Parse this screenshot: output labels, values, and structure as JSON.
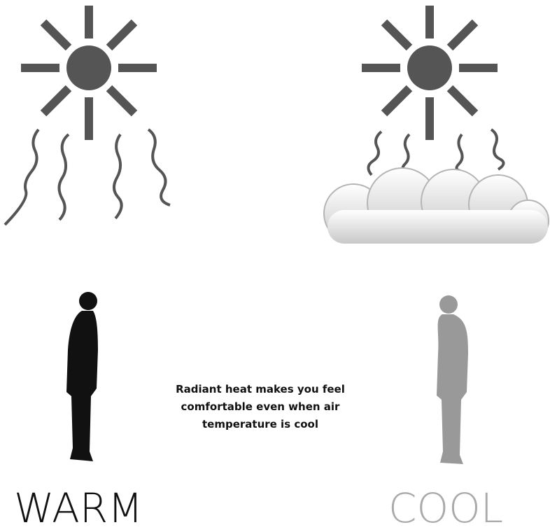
{
  "caption": "Radiant heat makes you feel comfortable even when air temperature is cool",
  "labels": {
    "warm": "WARM",
    "cool": "COOL"
  }
}
